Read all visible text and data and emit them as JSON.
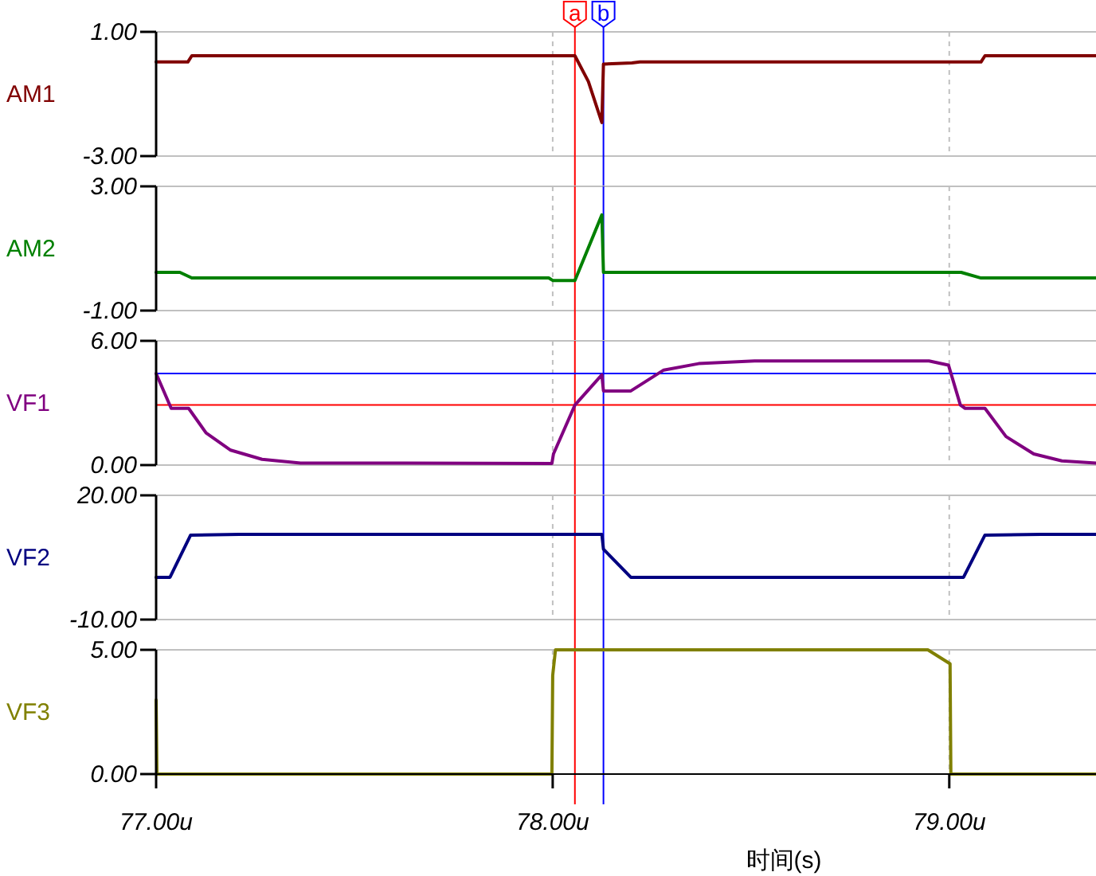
{
  "chart_data": [
    {
      "type": "line",
      "ylabel": "AM1",
      "xlim": [
        77,
        79.37
      ],
      "xticks": [
        77,
        78,
        79
      ],
      "ylim": [
        -3,
        1
      ],
      "yticks": [
        {
          "value": 1,
          "label": "1.00"
        },
        {
          "value": -3,
          "label": "-3.00"
        }
      ],
      "grid": true,
      "tick_labels": "y",
      "series": [
        {
          "color": "#800000",
          "x": [
            77,
            77.08,
            77.09,
            78.056,
            78.09,
            78.124,
            78.128,
            78.2,
            78.22,
            79.0,
            79.08,
            79.09,
            79.37
          ],
          "values": [
            0.03,
            0.03,
            0.23,
            0.23,
            -0.6,
            -1.92,
            -0.04,
            0.0,
            0.03,
            0.03,
            0.03,
            0.23,
            0.23
          ]
        }
      ],
      "ref_lines": [
        {
          "axis": "x",
          "value": 78.056,
          "label": "a",
          "color": "#ff0000"
        },
        {
          "axis": "x",
          "value": 78.128,
          "label": "b",
          "color": "#0000ff"
        }
      ]
    },
    {
      "type": "line",
      "ylabel": "AM2",
      "xlim": [
        77,
        79.37
      ],
      "xticks": [
        77,
        78,
        79
      ],
      "ylim": [
        -1,
        3
      ],
      "yticks": [
        {
          "value": 3,
          "label": "3.00"
        },
        {
          "value": -1,
          "label": "-1.00"
        }
      ],
      "grid": true,
      "tick_labels": "y",
      "series": [
        {
          "color": "#008000",
          "x": [
            77,
            77.06,
            77.09,
            77.99,
            78.0,
            78.056,
            78.124,
            78.128,
            79.03,
            79.08,
            79.37
          ],
          "values": [
            0.23,
            0.23,
            0.05,
            0.05,
            -0.03,
            -0.03,
            2.08,
            0.23,
            0.23,
            0.05,
            0.05
          ]
        }
      ],
      "ref_lines": [
        {
          "axis": "x",
          "value": 78.056,
          "color": "#ff0000"
        },
        {
          "axis": "x",
          "value": 78.128,
          "color": "#0000ff"
        }
      ]
    },
    {
      "type": "line",
      "ylabel": "VF1",
      "xlim": [
        77,
        79.37
      ],
      "xticks": [
        77,
        78,
        79
      ],
      "ylim": [
        0,
        6
      ],
      "yticks": [
        {
          "value": 6,
          "label": "6.00"
        },
        {
          "value": 0,
          "label": "0.00"
        }
      ],
      "grid": true,
      "tick_labels": "y",
      "series": [
        {
          "color": "#800080",
          "x": [
            77,
            77.038,
            77.082,
            77.126,
            77.188,
            77.267,
            77.364,
            77.998,
            78.002,
            78.056,
            78.124,
            78.128,
            78.197,
            78.28,
            78.368,
            78.509,
            78.949,
            78.998,
            79.028,
            79.04,
            79.09,
            79.143,
            79.213,
            79.284,
            79.37
          ],
          "values": [
            4.42,
            2.74,
            2.74,
            1.55,
            0.72,
            0.28,
            0.1,
            0.08,
            0.54,
            2.9,
            4.36,
            3.58,
            3.58,
            4.59,
            4.9,
            5.03,
            5.03,
            4.83,
            2.9,
            2.74,
            2.74,
            1.38,
            0.54,
            0.2,
            0.1
          ]
        }
      ],
      "ref_lines": [
        {
          "axis": "x",
          "value": 78.056,
          "color": "#ff0000"
        },
        {
          "axis": "x",
          "value": 78.128,
          "color": "#0000ff"
        },
        {
          "axis": "y",
          "value": 4.42,
          "color": "#0000ff"
        },
        {
          "axis": "y",
          "value": 2.9,
          "color": "#ff0000"
        }
      ]
    },
    {
      "type": "line",
      "ylabel": "VF2",
      "xlim": [
        77,
        79.37
      ],
      "xticks": [
        77,
        78,
        79
      ],
      "ylim": [
        -10,
        20
      ],
      "yticks": [
        {
          "value": 20,
          "label": "20.00"
        },
        {
          "value": -10,
          "label": "-10.00"
        }
      ],
      "grid": true,
      "tick_labels": "y",
      "series": [
        {
          "color": "#000080",
          "x": [
            77,
            77.035,
            77.087,
            77.21,
            78.124,
            78.128,
            78.197,
            79.036,
            79.09,
            79.231,
            79.37
          ],
          "values": [
            0.2,
            0.2,
            10.4,
            10.6,
            10.6,
            7.0,
            0.2,
            0.2,
            10.4,
            10.6,
            10.6
          ]
        }
      ],
      "ref_lines": [
        {
          "axis": "x",
          "value": 78.056,
          "color": "#ff0000"
        },
        {
          "axis": "x",
          "value": 78.128,
          "color": "#0000ff"
        }
      ]
    },
    {
      "type": "line",
      "ylabel": "VF3",
      "xlabel": "时间(s)",
      "xlim": [
        77,
        79.37
      ],
      "xticks": [
        {
          "value": 77,
          "label": "77.00u"
        },
        {
          "value": 78,
          "label": "78.00u"
        },
        {
          "value": 79,
          "label": "79.00u"
        }
      ],
      "ylim": [
        0,
        5
      ],
      "yticks": [
        {
          "value": 5,
          "label": "5.00"
        },
        {
          "value": 0,
          "label": "0.00"
        }
      ],
      "grid": true,
      "series": [
        {
          "color": "#808000",
          "x": [
            77,
            77.002,
            77.998,
            78.0,
            78.007,
            78.946,
            79.002,
            79.004,
            79.37
          ],
          "values": [
            2.98,
            0,
            0,
            3.97,
            5.0,
            5.0,
            4.44,
            0,
            0
          ]
        }
      ],
      "ref_lines": [
        {
          "axis": "x",
          "value": 78.056,
          "color": "#ff0000"
        },
        {
          "axis": "x",
          "value": 78.128,
          "color": "#0000ff"
        }
      ]
    }
  ]
}
